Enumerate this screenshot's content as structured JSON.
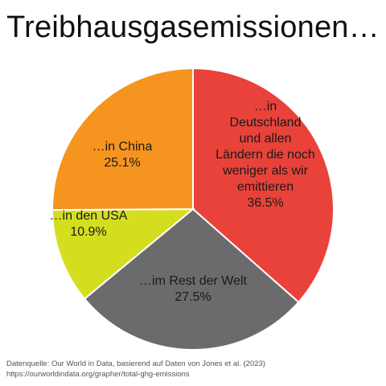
{
  "title": "Treibhausgasemissionen…",
  "chart_data": {
    "type": "pie",
    "title": "Treibhausgasemissionen…",
    "unit": "%",
    "start_angle_deg": 0,
    "direction": "clockwise",
    "slices": [
      {
        "id": "deutschland",
        "label_lines": [
          "…in",
          "Deutschland",
          "und allen",
          "Ländern die noch",
          "weniger als wir",
          "emittieren"
        ],
        "value": 36.5,
        "value_label": "36.5%",
        "color": "#e8423a"
      },
      {
        "id": "rest",
        "label_lines": [
          "…im Rest der Welt"
        ],
        "value": 27.5,
        "value_label": "27.5%",
        "color": "#6b6b6e"
      },
      {
        "id": "usa",
        "label_lines": [
          "…in den USA"
        ],
        "value": 10.9,
        "value_label": "10.9%",
        "color": "#d4de1f"
      },
      {
        "id": "china",
        "label_lines": [
          "…in China"
        ],
        "value": 25.1,
        "value_label": "25.1%",
        "color": "#f5951f"
      }
    ]
  },
  "source": {
    "line1": "Datenquelle: Our World in Data, basierend auf Daten von Jones et al. (2023)",
    "line2": "https://ourworldindata.org/grapher/total-ghg-emissions"
  }
}
